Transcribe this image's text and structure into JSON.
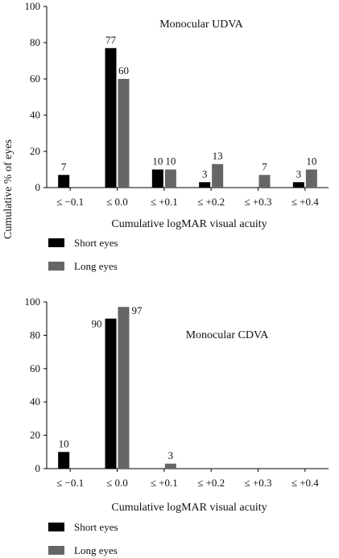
{
  "figure": {
    "ylabel": "Cumulative % of eyes"
  },
  "chart_data": [
    {
      "type": "bar",
      "title": "Monocular UDVA",
      "xlabel": "Cumulative logMAR visual acuity",
      "ylabel": "Cumulative % of eyes",
      "ylim": [
        0,
        100
      ],
      "yticks": [
        0,
        20,
        40,
        60,
        80,
        100
      ],
      "categories": [
        "≤ −0.1",
        "≤ 0.0",
        "≤ +0.1",
        "≤ +0.2",
        "≤ +0.3",
        "≤ +0.4"
      ],
      "series": [
        {
          "name": "Short eyes",
          "color": "#000000",
          "values": [
            7,
            77,
            10,
            3,
            0,
            3
          ]
        },
        {
          "name": "Long eyes",
          "color": "#666666",
          "values": [
            0,
            60,
            10,
            13,
            7,
            10
          ]
        }
      ],
      "legend_position": "below"
    },
    {
      "type": "bar",
      "title": "Monocular CDVA",
      "xlabel": "Cumulative logMAR visual acuity",
      "ylabel": "Cumulative % of eyes",
      "ylim": [
        0,
        100
      ],
      "yticks": [
        0,
        20,
        40,
        60,
        80,
        100
      ],
      "categories": [
        "≤ −0.1",
        "≤ 0.0",
        "≤ +0.1",
        "≤ +0.2",
        "≤ +0.3",
        "≤ +0.4"
      ],
      "series": [
        {
          "name": "Short eyes",
          "color": "#000000",
          "values": [
            10,
            90,
            0,
            0,
            0,
            0
          ]
        },
        {
          "name": "Long eyes",
          "color": "#666666",
          "values": [
            0,
            97,
            3,
            0,
            0,
            0
          ]
        }
      ],
      "legend_position": "below"
    }
  ]
}
